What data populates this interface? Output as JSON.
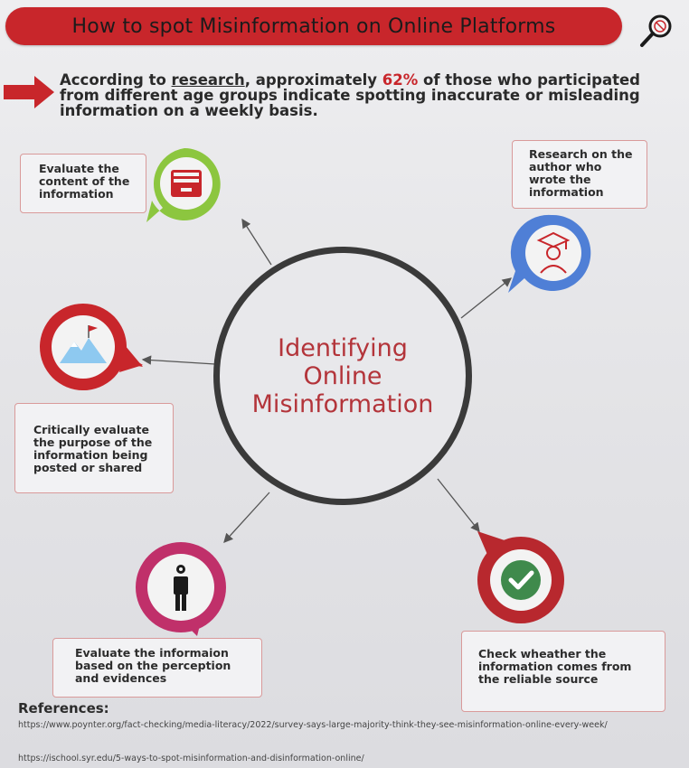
{
  "title": "How to spot Misinformation on Online Platforms",
  "intro": {
    "part1": "According to ",
    "link": "research",
    "part2": ", approximately ",
    "percent": "62%",
    "part3": " of those who participated from different age groups indicate spotting inaccurate or misleading information on a weekly basis."
  },
  "center": {
    "line1": "Identifying",
    "line2": "Online",
    "line3": "Misinformation"
  },
  "steps": {
    "content": "Evaluate the content of the information",
    "author": "Research on the author who wrote the information",
    "purpose": "Critically evaluate the purpose of the information being posted or shared",
    "perception": "Evaluate the informaion based on the perception and evidences",
    "source": "Check wheather the information comes from the reliable source"
  },
  "references": {
    "title": "References:",
    "links": [
      "https://www.poynter.org/fact-checking/media-literacy/2022/survey-says-large-majority-think-they-see-misinformation-online-every-week/",
      "https://ischool.syr.edu/5-ways-to-spot-misinformation-and-disinformation-online/"
    ]
  },
  "colors": {
    "accent_red": "#c8262b",
    "green": "#8cc63f",
    "blue": "#4f7fd6",
    "red": "#c8262b",
    "magenta": "#c0306a",
    "dark_red": "#b8282e"
  },
  "icons": {
    "content": "drawer-icon",
    "author": "graduate-icon",
    "purpose": "mountain-flag-icon",
    "perception": "person-gear-icon",
    "source": "checkmark-icon",
    "search": "magnifier-icon",
    "pointer": "arrow-right-icon"
  }
}
